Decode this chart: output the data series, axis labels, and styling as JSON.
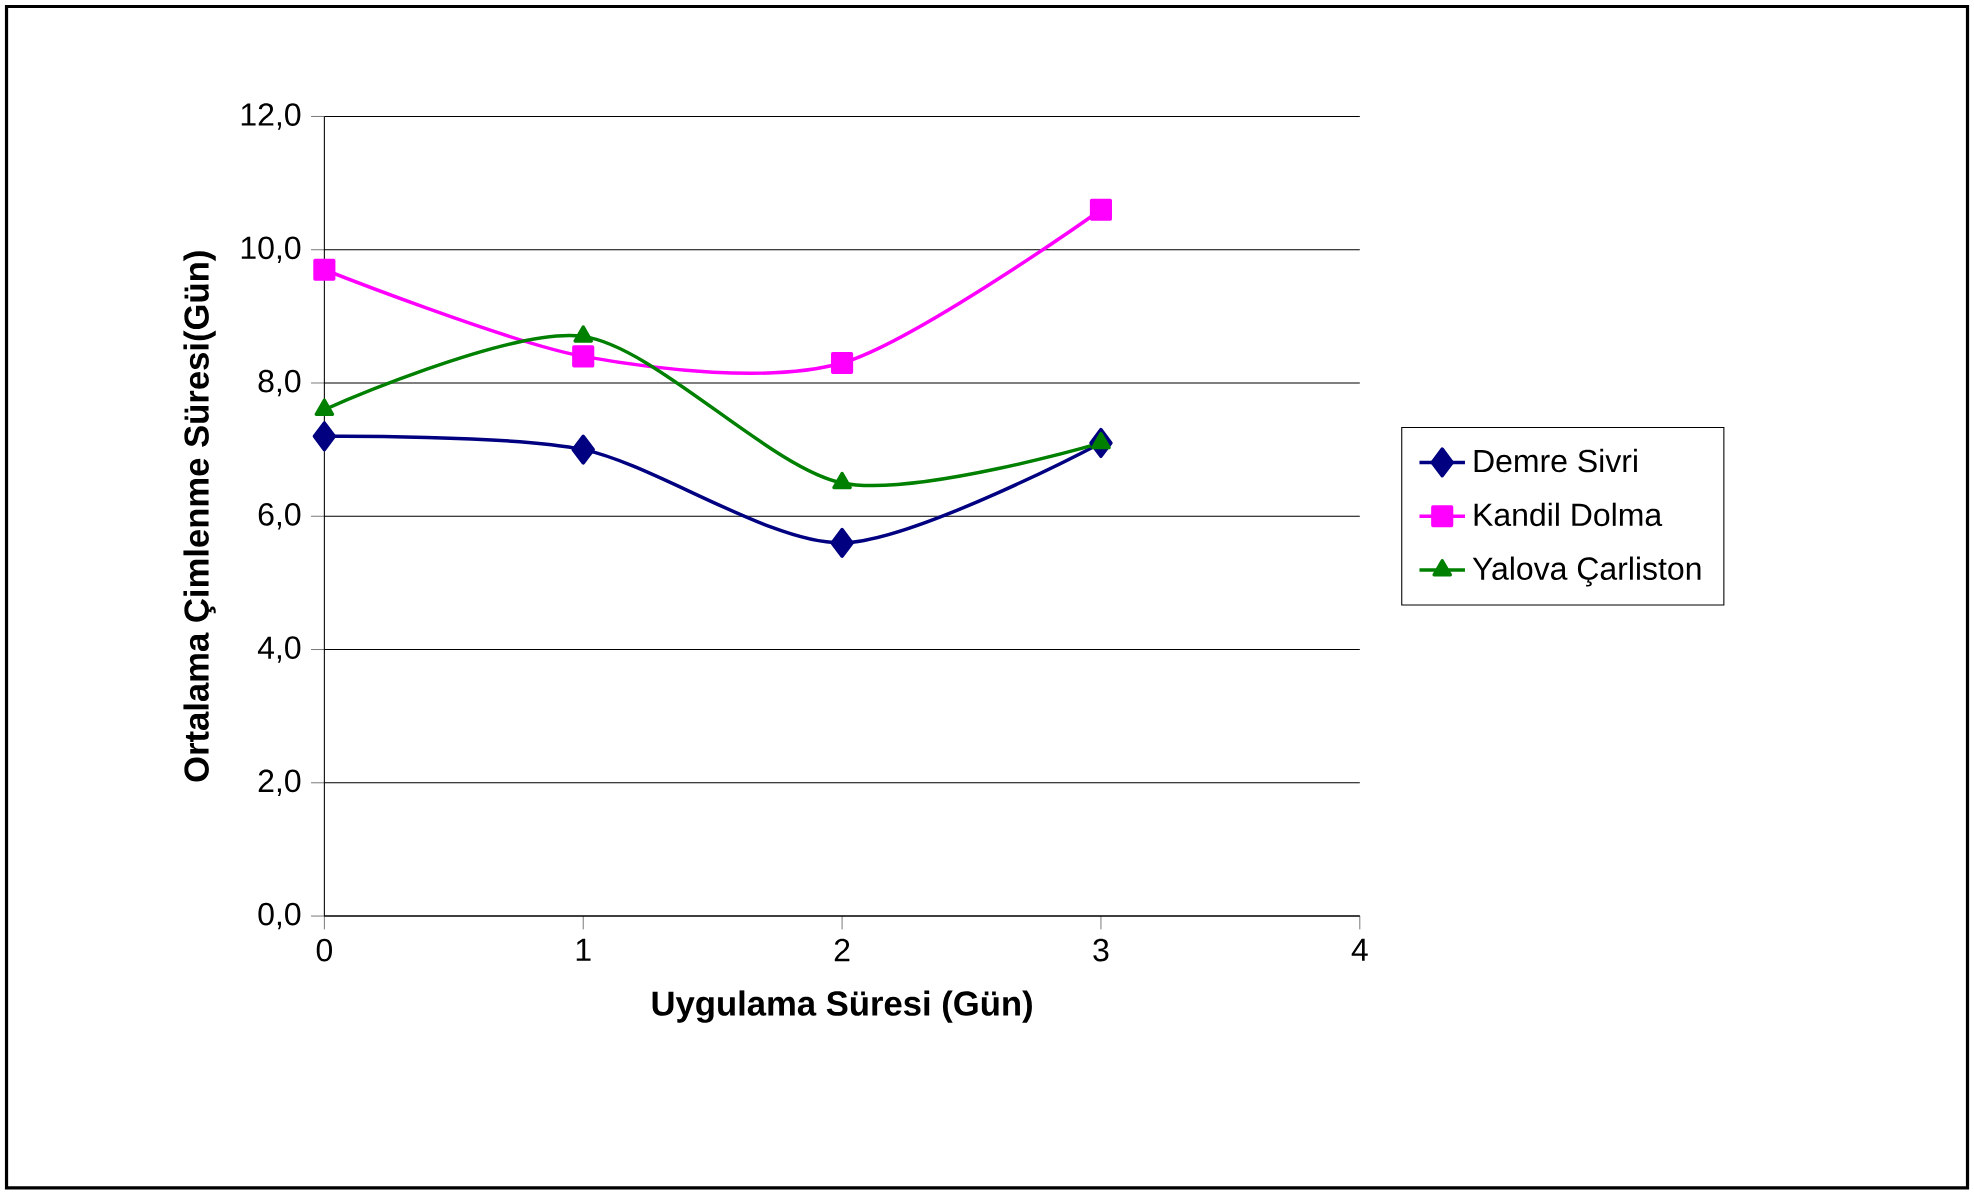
{
  "chart_data": {
    "type": "line",
    "xlabel": "Uygulama Süresi (Gün)",
    "ylabel": "Ortalama Çimlenme Süresi(Gün)",
    "x": [
      0,
      1,
      2,
      3
    ],
    "series": [
      {
        "name": "Demre Sivri",
        "color": "#000080",
        "marker": "diamond",
        "values": [
          7.2,
          7.0,
          5.6,
          7.1
        ]
      },
      {
        "name": "Kandil Dolma",
        "color": "#ff00ff",
        "marker": "square",
        "values": [
          9.7,
          8.4,
          8.3,
          10.6
        ]
      },
      {
        "name": "Yalova Çarliston",
        "color": "#008000",
        "marker": "triangle",
        "values": [
          7.6,
          8.7,
          6.5,
          7.1
        ]
      }
    ],
    "xlim": [
      0,
      4
    ],
    "xticks": [
      0,
      1,
      2,
      3,
      4
    ],
    "ylim": [
      0,
      12
    ],
    "yticks": [
      {
        "value": 0,
        "label": "0,0"
      },
      {
        "value": 2,
        "label": "2,0"
      },
      {
        "value": 4,
        "label": "4,0"
      },
      {
        "value": 6,
        "label": "6,0"
      },
      {
        "value": 8,
        "label": "8,0"
      },
      {
        "value": 10,
        "label": "10,0"
      },
      {
        "value": 12,
        "label": "12,0"
      }
    ],
    "grid": "y",
    "legend": "right"
  }
}
